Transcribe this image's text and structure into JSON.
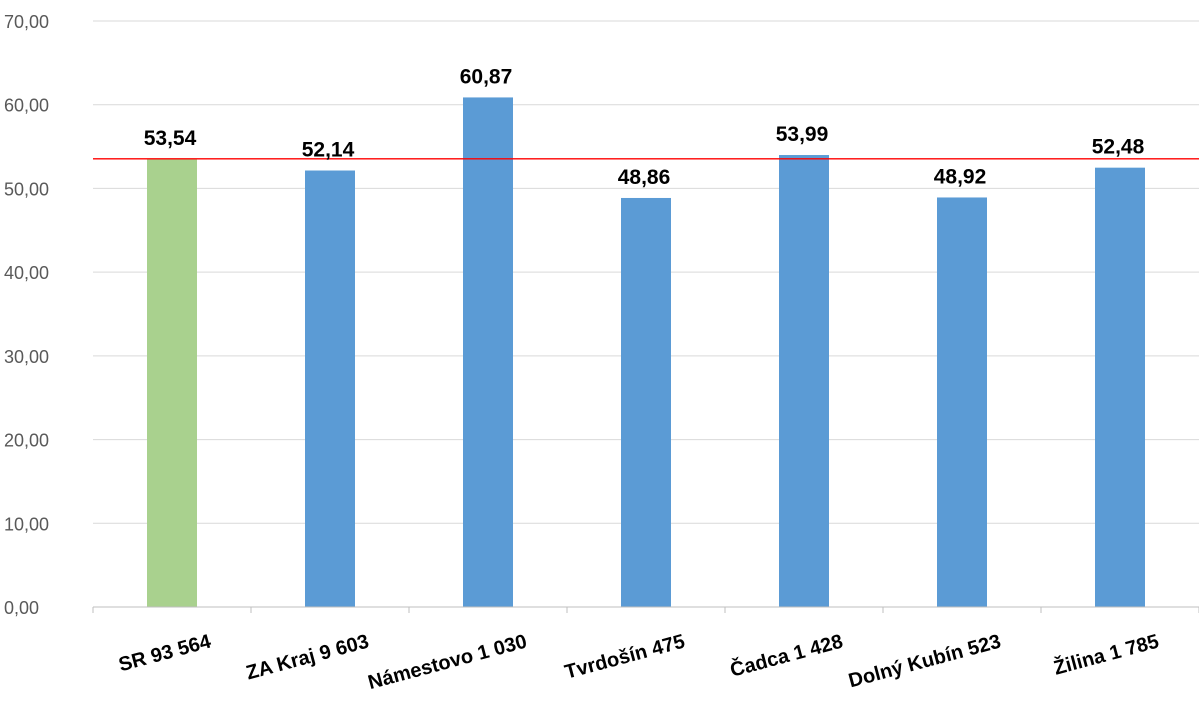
{
  "chart_data": {
    "type": "bar",
    "title": "",
    "xlabel": "",
    "ylabel": "",
    "categories": [
      "SR  93 564",
      "ZA Kraj  9 603",
      "Námestovo  1 030",
      "Tvrdošín  475",
      "Čadca  1 428",
      "Dolný Kubín  523",
      "Žilina  1 785"
    ],
    "values": [
      53.54,
      52.14,
      60.87,
      48.86,
      53.99,
      48.92,
      52.48
    ],
    "value_labels": [
      "53,54",
      "52,14",
      "60,87",
      "48,86",
      "53,99",
      "48,92",
      "52,48"
    ],
    "bar_colors": [
      "#a9d18e",
      "#5b9bd5",
      "#5b9bd5",
      "#5b9bd5",
      "#5b9bd5",
      "#5b9bd5",
      "#5b9bd5"
    ],
    "ylim": [
      0,
      70
    ],
    "yticks": [
      0,
      10,
      20,
      30,
      40,
      50,
      60,
      70
    ],
    "ytick_labels": [
      "0,00",
      "10,00",
      "20,00",
      "30,00",
      "40,00",
      "50,00",
      "60,00",
      "70,00"
    ],
    "reference_line": {
      "value": 53.54,
      "color": "#ff0000"
    },
    "grid": true,
    "legend": "none"
  }
}
